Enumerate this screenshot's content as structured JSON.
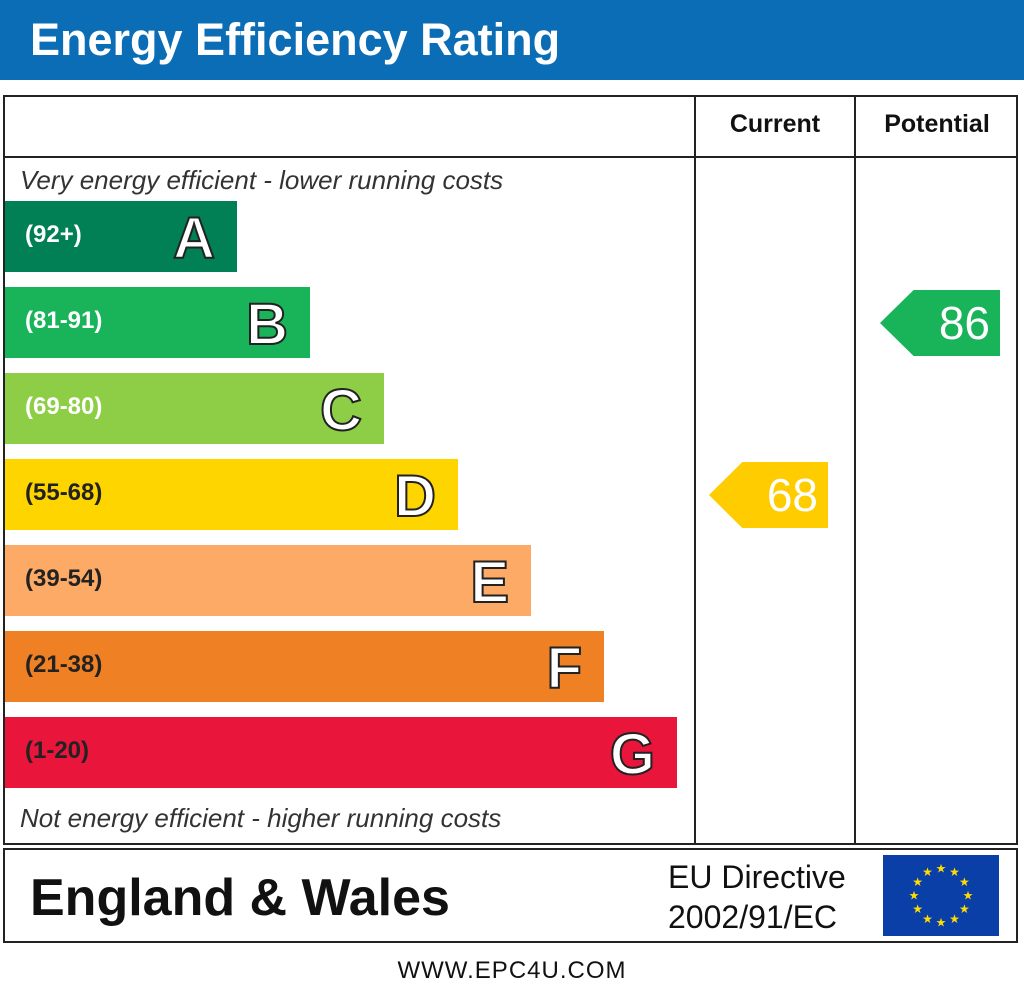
{
  "title": "Energy Efficiency Rating",
  "columns": {
    "current": "Current",
    "potential": "Potential"
  },
  "top_note": "Very energy efficient - lower running costs",
  "bottom_note": "Not energy efficient - higher running costs",
  "chart_data": {
    "type": "bar",
    "title": "Energy Efficiency Rating",
    "categories": [
      "A",
      "B",
      "C",
      "D",
      "E",
      "F",
      "G"
    ],
    "ranges": [
      "(92+)",
      "(81-91)",
      "(69-80)",
      "(55-68)",
      "(39-54)",
      "(21-38)",
      "(1-20)"
    ],
    "colors": [
      "#008054",
      "#19b459",
      "#8dce46",
      "#ffd500",
      "#fcaa65",
      "#ef8023",
      "#e9153b"
    ],
    "current": {
      "value": 68,
      "band": "D",
      "color": "#ffcc00"
    },
    "potential": {
      "value": 86,
      "band": "B",
      "color": "#19b459"
    }
  },
  "footer": {
    "region": "England & Wales",
    "directive_line1": "EU Directive",
    "directive_line2": "2002/91/EC",
    "flag": "eu-flag-icon"
  },
  "url": "WWW.EPC4U.COM"
}
